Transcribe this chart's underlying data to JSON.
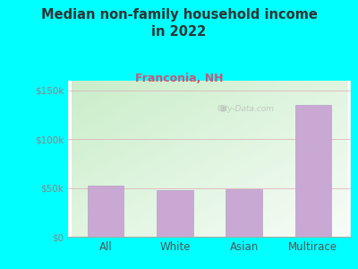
{
  "title": "Median non-family household income\nin 2022",
  "subtitle": "Franconia, NH",
  "categories": [
    "All",
    "White",
    "Asian",
    "Multirace"
  ],
  "values": [
    52000,
    48000,
    49000,
    135000
  ],
  "bar_color": "#c9a8d4",
  "bar_edge_color": "#b8a0c8",
  "background_color": "#00ffff",
  "plot_bg_color_topleft": "#c8e6c8",
  "plot_bg_color_white": "#f8fff8",
  "title_color": "#333333",
  "subtitle_color": "#cc5577",
  "ytick_color": "#888888",
  "xtick_color": "#555555",
  "ytick_labels": [
    "$0",
    "$50k",
    "$100k",
    "$150k"
  ],
  "ytick_values": [
    0,
    50000,
    100000,
    150000
  ],
  "ylim": [
    0,
    160000
  ],
  "grid_color": "#e0b0b8",
  "watermark": "City-Data.com"
}
